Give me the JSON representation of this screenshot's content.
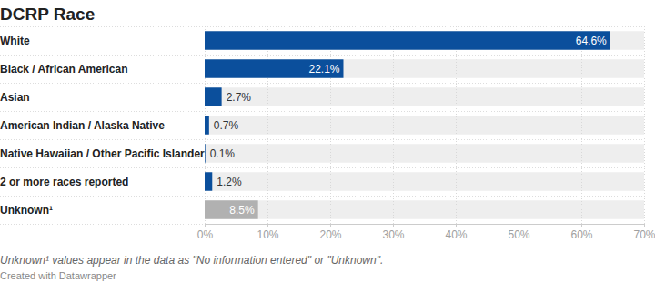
{
  "chart_data": {
    "type": "bar",
    "title": "DCRP Race",
    "orientation": "horizontal",
    "categories": [
      "White",
      "Black / African American",
      "Asian",
      "American Indian / Alaska Native",
      "Native Hawaiian / Other Pacific Islander",
      "2 or more races reported",
      "Unknown¹"
    ],
    "values": [
      64.6,
      22.1,
      2.7,
      0.7,
      0.1,
      1.2,
      8.5
    ],
    "value_labels": [
      "64.6%",
      "22.1%",
      "2.7%",
      "0.7%",
      "0.1%",
      "1.2%",
      "8.5%"
    ],
    "colors": [
      "#0b4f9c",
      "#0b4f9c",
      "#0b4f9c",
      "#0b4f9c",
      "#0b4f9c",
      "#0b4f9c",
      "#b1b1b1"
    ],
    "xlim": [
      0,
      70
    ],
    "xticks": [
      {
        "value": 0,
        "label": "0%"
      },
      {
        "value": 10,
        "label": "10%"
      },
      {
        "value": 20,
        "label": "20%"
      },
      {
        "value": 30,
        "label": "30%"
      },
      {
        "value": 40,
        "label": "40%"
      },
      {
        "value": 50,
        "label": "50%"
      },
      {
        "value": 60,
        "label": "60%"
      },
      {
        "value": 70,
        "label": "70%"
      }
    ],
    "grid": true,
    "data_labels": true,
    "annotations": [
      "Unknown¹ values appear in the data as \"No information entered\" or \"Unknown\".",
      "Created with Datawrapper"
    ]
  }
}
